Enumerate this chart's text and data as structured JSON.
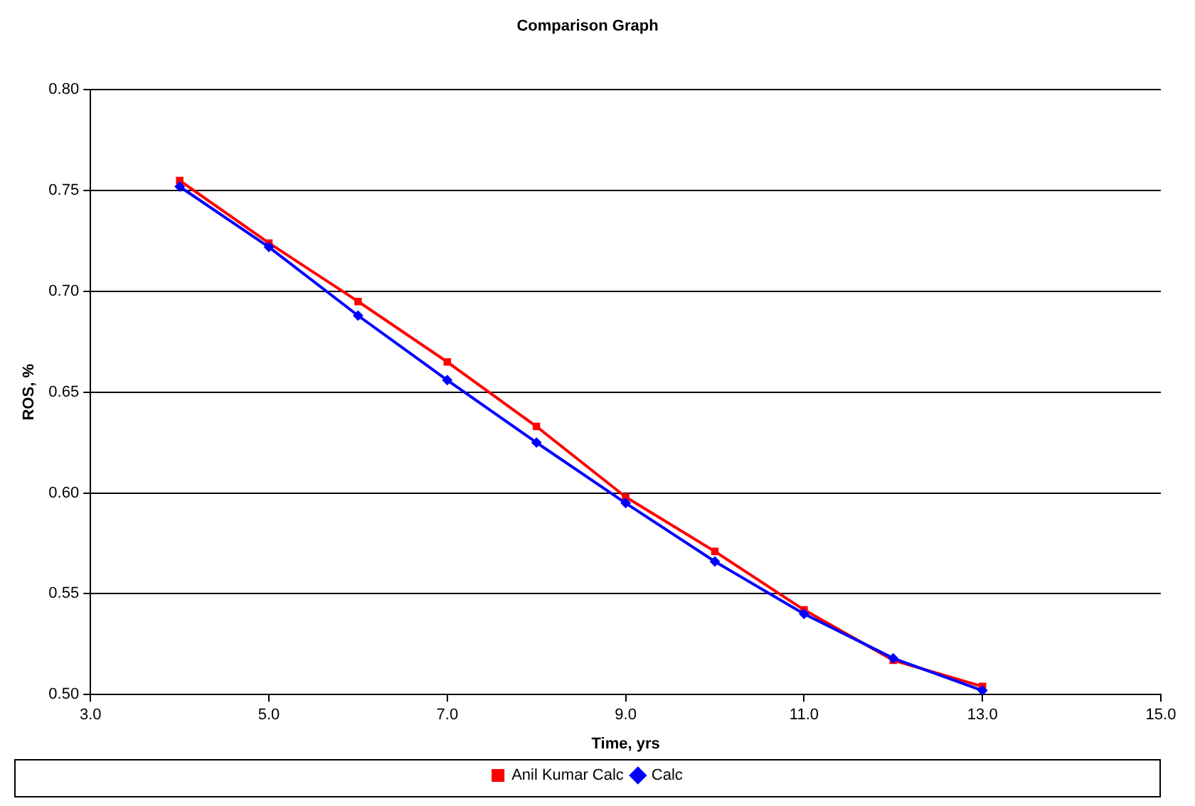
{
  "chart_data": {
    "type": "line",
    "title": "Comparison Graph",
    "xlabel": "Time, yrs",
    "ylabel": "ROS, %",
    "xlim": [
      3,
      15
    ],
    "xticks": [
      {
        "value": 3,
        "label": "3.0"
      },
      {
        "value": 5,
        "label": "5.0"
      },
      {
        "value": 7,
        "label": "7.0"
      },
      {
        "value": 9,
        "label": "9.0"
      },
      {
        "value": 11,
        "label": "11.0"
      },
      {
        "value": 13,
        "label": "13.0"
      },
      {
        "value": 15,
        "label": "15.0"
      }
    ],
    "ylim": [
      0.5,
      0.8
    ],
    "yticks": [
      {
        "value": 0.5,
        "label": "0.50"
      },
      {
        "value": 0.55,
        "label": "0.55"
      },
      {
        "value": 0.6,
        "label": "0.60"
      },
      {
        "value": 0.65,
        "label": "0.65"
      },
      {
        "value": 0.7,
        "label": "0.70"
      },
      {
        "value": 0.75,
        "label": "0.75"
      },
      {
        "value": 0.8,
        "label": "0.80"
      }
    ],
    "x": [
      4,
      5,
      6,
      7,
      8,
      9,
      10,
      11,
      12,
      13
    ],
    "series": [
      {
        "name": "Anil Kumar Calc",
        "color": "#ff0000",
        "marker": "square",
        "values": [
          0.755,
          0.724,
          0.695,
          0.665,
          0.633,
          0.598,
          0.571,
          0.542,
          0.517,
          0.504
        ]
      },
      {
        "name": "Calc",
        "color": "#0000ff",
        "marker": "diamond",
        "values": [
          0.752,
          0.722,
          0.688,
          0.656,
          0.625,
          0.595,
          0.566,
          0.54,
          0.518,
          0.502
        ]
      }
    ],
    "grid": "y",
    "legend": "bottom"
  }
}
